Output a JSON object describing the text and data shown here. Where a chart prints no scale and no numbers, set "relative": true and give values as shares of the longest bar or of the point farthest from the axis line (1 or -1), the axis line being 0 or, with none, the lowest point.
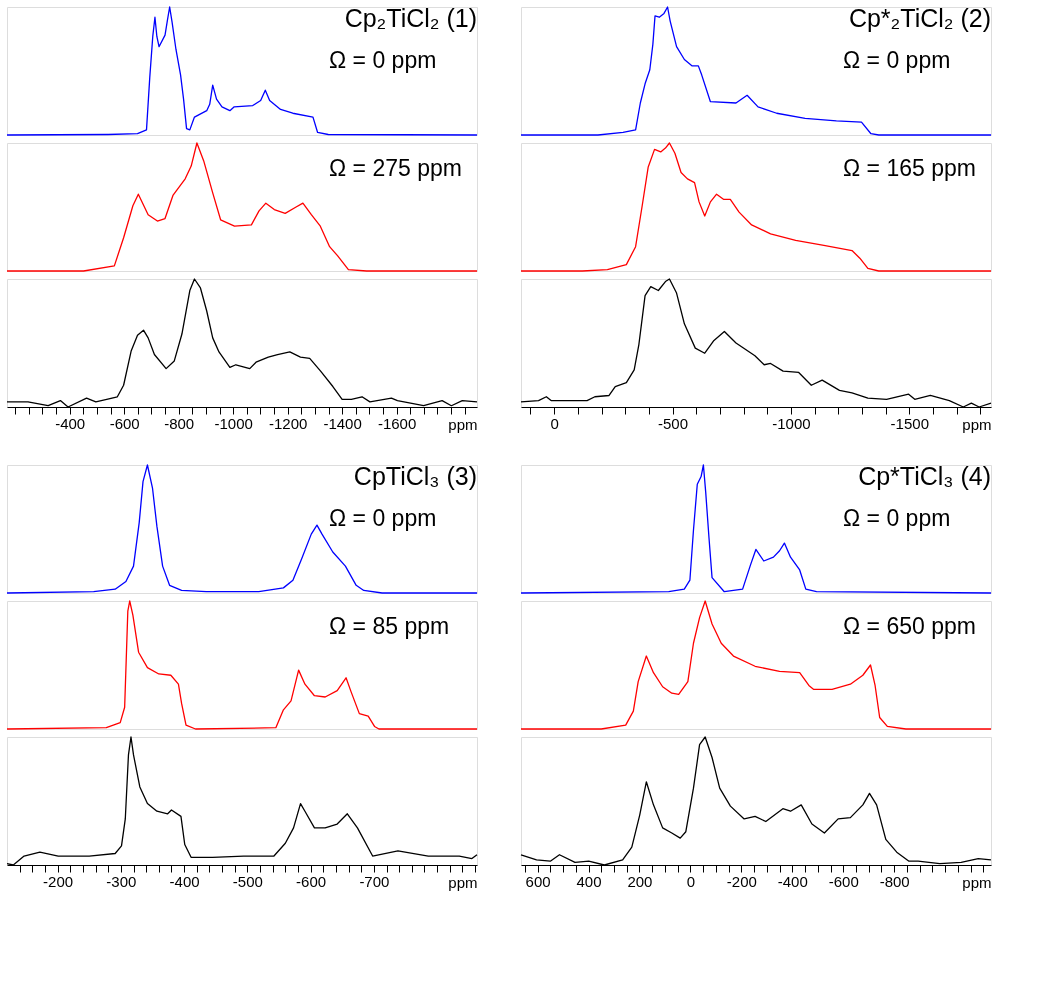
{
  "chart_data": [
    {
      "type": "line",
      "relative": true,
      "title": "Cp₂TiCl₂ (1)",
      "annotations": [
        "Ω = 0 ppm"
      ],
      "color": "#0000ff",
      "xlim": [
        -170,
        -1895
      ],
      "tick_labels": false,
      "x": [
        -170,
        -541,
        -649,
        -682,
        -694,
        -705,
        -713,
        -720,
        -728,
        -750,
        -759,
        -767,
        -776,
        -790,
        -807,
        -818,
        -829,
        -841,
        -858,
        -903,
        -914,
        -925,
        -939,
        -959,
        -988,
        -1004,
        -1072,
        -1101,
        -1118,
        -1134,
        -1174,
        -1219,
        -1293,
        -1310,
        -1349,
        -1895
      ],
      "values": [
        0,
        0.004,
        0.01,
        0.04,
        0.45,
        0.77,
        0.92,
        0.77,
        0.69,
        0.78,
        0.9,
        1.0,
        0.88,
        0.67,
        0.47,
        0.28,
        0.05,
        0.04,
        0.14,
        0.19,
        0.24,
        0.39,
        0.28,
        0.22,
        0.19,
        0.22,
        0.23,
        0.27,
        0.35,
        0.27,
        0.2,
        0.17,
        0.14,
        0.02,
        0.004,
        0
      ]
    },
    {
      "type": "line",
      "relative": true,
      "annotations": [
        "Ω = 275 ppm"
      ],
      "color": "#ff0000",
      "xlim": [
        -170,
        -1895
      ],
      "tick_labels": false,
      "x": [
        -170,
        -451,
        -564,
        -598,
        -632,
        -652,
        -688,
        -722,
        -750,
        -779,
        -824,
        -846,
        -867,
        -892,
        -925,
        -954,
        -1005,
        -1067,
        -1095,
        -1120,
        -1151,
        -1191,
        -1231,
        -1256,
        -1287,
        -1320,
        -1354,
        -1383,
        -1423,
        -1490,
        -1895
      ],
      "values": [
        0,
        0,
        0.04,
        0.26,
        0.51,
        0.6,
        0.44,
        0.39,
        0.41,
        0.59,
        0.72,
        0.82,
        1.0,
        0.86,
        0.61,
        0.4,
        0.35,
        0.36,
        0.47,
        0.53,
        0.48,
        0.45,
        0.5,
        0.53,
        0.44,
        0.35,
        0.19,
        0.12,
        0.01,
        0,
        0
      ]
    },
    {
      "type": "line",
      "relative": true,
      "color": "#000000",
      "xlim": [
        -170,
        -1895
      ],
      "xlabel": "ppm",
      "xticks": [
        {
          "value": -200,
          "label": null
        },
        {
          "value": -250,
          "label": null
        },
        {
          "value": -300,
          "label": null
        },
        {
          "value": -350,
          "label": null
        },
        -400,
        {
          "value": -450,
          "label": null
        },
        {
          "value": -500,
          "label": null
        },
        {
          "value": -550,
          "label": null
        },
        -600,
        {
          "value": -650,
          "label": null
        },
        {
          "value": -700,
          "label": null
        },
        {
          "value": -750,
          "label": null
        },
        -800,
        {
          "value": -850,
          "label": null
        },
        {
          "value": -900,
          "label": null
        },
        {
          "value": -950,
          "label": null
        },
        -1000,
        {
          "value": -1050,
          "label": null
        },
        {
          "value": -1100,
          "label": null
        },
        {
          "value": -1150,
          "label": null
        },
        -1200,
        {
          "value": -1250,
          "label": null
        },
        {
          "value": -1300,
          "label": null
        },
        {
          "value": -1350,
          "label": null
        },
        -1400,
        {
          "value": -1450,
          "label": null
        },
        {
          "value": -1500,
          "label": null
        },
        {
          "value": -1550,
          "label": null
        },
        -1600,
        {
          "value": -1650,
          "label": null
        },
        {
          "value": -1700,
          "label": null
        },
        {
          "value": -1750,
          "label": null
        },
        {
          "value": -1800,
          "label": null
        },
        {
          "value": -1850,
          "label": null
        }
      ],
      "x": [
        -170,
        -247,
        -321,
        -366,
        -394,
        -462,
        -496,
        -536,
        -575,
        -598,
        -626,
        -649,
        -671,
        -688,
        -711,
        -754,
        -784,
        -812,
        -841,
        -858,
        -880,
        -903,
        -925,
        -948,
        -988,
        -1010,
        -1061,
        -1084,
        -1129,
        -1163,
        -1208,
        -1247,
        -1281,
        -1321,
        -1366,
        -1400,
        -1434,
        -1473,
        -1502,
        -1581,
        -1603,
        -1699,
        -1767,
        -1801,
        -1841,
        -1895
      ],
      "values": [
        0.04,
        0.04,
        0.01,
        0.05,
        0,
        0.07,
        0.04,
        0.06,
        0.08,
        0.17,
        0.44,
        0.56,
        0.6,
        0.54,
        0.41,
        0.3,
        0.36,
        0.57,
        0.91,
        1.0,
        0.93,
        0.75,
        0.54,
        0.43,
        0.31,
        0.33,
        0.3,
        0.35,
        0.39,
        0.41,
        0.43,
        0.39,
        0.38,
        0.28,
        0.16,
        0.06,
        0.06,
        0.08,
        0.04,
        0.07,
        0.05,
        0.01,
        0.05,
        0.01,
        0.05,
        0.04
      ]
    },
    {
      "type": "line",
      "relative": true,
      "title": "Cp*₂TiCl₂ (2)",
      "annotations": [
        "Ω = 0 ppm"
      ],
      "color": "#0000ff",
      "xlim": [
        140,
        -1845
      ],
      "tick_labels": false,
      "x": [
        140,
        -185,
        -291,
        -344,
        -364,
        -384,
        -404,
        -417,
        -426,
        -444,
        -464,
        -479,
        -490,
        -517,
        -550,
        -583,
        -609,
        -623,
        -660,
        -768,
        -815,
        -861,
        -940,
        -1060,
        -1192,
        -1298,
        -1338,
        -1371,
        -1845
      ],
      "values": [
        0,
        0,
        0.02,
        0.04,
        0.25,
        0.4,
        0.51,
        0.71,
        0.93,
        0.92,
        0.95,
        1.0,
        0.89,
        0.69,
        0.59,
        0.54,
        0.54,
        0.47,
        0.26,
        0.25,
        0.31,
        0.22,
        0.17,
        0.13,
        0.11,
        0.1,
        0.01,
        0,
        0
      ]
    },
    {
      "type": "line",
      "relative": true,
      "annotations": [
        "Ω = 165 ppm"
      ],
      "color": "#ff0000",
      "xlim": [
        140,
        -1845
      ],
      "tick_labels": false,
      "x": [
        140,
        -119,
        -225,
        -305,
        -344,
        -371,
        -397,
        -424,
        -450,
        -470,
        -487,
        -510,
        -536,
        -563,
        -593,
        -612,
        -636,
        -660,
        -686,
        -715,
        -744,
        -781,
        -834,
        -914,
        -1020,
        -1139,
        -1258,
        -1291,
        -1325,
        -1371,
        -1845
      ],
      "values": [
        0,
        0,
        0.01,
        0.05,
        0.19,
        0.5,
        0.81,
        0.95,
        0.93,
        0.96,
        1.0,
        0.92,
        0.77,
        0.72,
        0.69,
        0.54,
        0.43,
        0.54,
        0.6,
        0.56,
        0.56,
        0.46,
        0.36,
        0.29,
        0.24,
        0.2,
        0.16,
        0.1,
        0.02,
        0,
        0
      ]
    },
    {
      "type": "line",
      "relative": true,
      "color": "#000000",
      "xlim": [
        140,
        -1845
      ],
      "xlabel": "ppm",
      "xticks": [
        {
          "value": 100,
          "label": null
        },
        0,
        {
          "value": -100,
          "label": null
        },
        {
          "value": -200,
          "label": null
        },
        {
          "value": -300,
          "label": null
        },
        {
          "value": -400,
          "label": null
        },
        -500,
        {
          "value": -600,
          "label": null
        },
        {
          "value": -700,
          "label": null
        },
        {
          "value": -800,
          "label": null
        },
        {
          "value": -900,
          "label": null
        },
        -1000,
        {
          "value": -1100,
          "label": null
        },
        {
          "value": -1200,
          "label": null
        },
        {
          "value": -1300,
          "label": null
        },
        {
          "value": -1400,
          "label": null
        },
        -1500,
        {
          "value": -1600,
          "label": null
        },
        {
          "value": -1700,
          "label": null
        },
        {
          "value": -1800,
          "label": null
        }
      ],
      "x": [
        140,
        66,
        33,
        13,
        -66,
        -139,
        -172,
        -232,
        -258,
        -305,
        -338,
        -358,
        -384,
        -408,
        -440,
        -470,
        -487,
        -517,
        -550,
        -596,
        -636,
        -675,
        -719,
        -768,
        -848,
        -887,
        -914,
        -967,
        -1033,
        -1086,
        -1132,
        -1205,
        -1258,
        -1325,
        -1404,
        -1497,
        -1523,
        -1589,
        -1669,
        -1728,
        -1762,
        -1795,
        -1845
      ],
      "values": [
        0.04,
        0.05,
        0.08,
        0.05,
        0.05,
        0.05,
        0.08,
        0.09,
        0.16,
        0.19,
        0.29,
        0.49,
        0.87,
        0.94,
        0.91,
        0.98,
        1.0,
        0.89,
        0.65,
        0.46,
        0.42,
        0.52,
        0.59,
        0.5,
        0.4,
        0.33,
        0.34,
        0.28,
        0.27,
        0.17,
        0.21,
        0.13,
        0.11,
        0.07,
        0.06,
        0.1,
        0.06,
        0.09,
        0.05,
        0,
        0.03,
        0,
        0.03
      ]
    },
    {
      "type": "line",
      "relative": true,
      "title": "CpTiCl₃ (3)",
      "annotations": [
        "Ω = 0 ppm"
      ],
      "color": "#0000ff",
      "xlim": [
        -120,
        -863
      ],
      "tick_labels": false,
      "x": [
        -120,
        -257,
        -291,
        -308,
        -320,
        -329,
        -335,
        -342,
        -350,
        -357,
        -366,
        -377,
        -396,
        -435,
        -518,
        -557,
        -572,
        -586,
        -601,
        -610,
        -618,
        -635,
        -655,
        -672,
        -684,
        -713,
        -863
      ],
      "values": [
        0,
        0.01,
        0.03,
        0.09,
        0.21,
        0.55,
        0.87,
        1.0,
        0.82,
        0.52,
        0.21,
        0.06,
        0.02,
        0.01,
        0.01,
        0.04,
        0.1,
        0.27,
        0.46,
        0.53,
        0.46,
        0.32,
        0.21,
        0.06,
        0.02,
        0,
        0
      ]
    },
    {
      "type": "line",
      "relative": true,
      "annotations": [
        "Ω = 85 ppm"
      ],
      "color": "#ff0000",
      "xlim": [
        -120,
        -863
      ],
      "tick_labels": false,
      "x": [
        -120,
        -277,
        -299,
        -306,
        -311,
        -314,
        -319,
        -328,
        -342,
        -360,
        -379,
        -391,
        -396,
        -403,
        -418,
        -545,
        -557,
        -569,
        -581,
        -591,
        -606,
        -623,
        -642,
        -656,
        -664,
        -677,
        -691,
        -701,
        -708,
        -863
      ],
      "values": [
        0,
        0.01,
        0.05,
        0.17,
        0.92,
        1.0,
        0.89,
        0.6,
        0.48,
        0.43,
        0.42,
        0.35,
        0.2,
        0.03,
        0,
        0.01,
        0.15,
        0.22,
        0.46,
        0.35,
        0.26,
        0.25,
        0.3,
        0.4,
        0.29,
        0.12,
        0.1,
        0.02,
        0,
        0
      ]
    },
    {
      "type": "line",
      "relative": true,
      "color": "#000000",
      "xlim": [
        -120,
        -863
      ],
      "xlabel": "ppm",
      "xticks": [
        {
          "value": -140,
          "label": null
        },
        {
          "value": -160,
          "label": null
        },
        {
          "value": -180,
          "label": null
        },
        -200,
        {
          "value": -220,
          "label": null
        },
        {
          "value": -240,
          "label": null
        },
        {
          "value": -260,
          "label": null
        },
        {
          "value": -280,
          "label": null
        },
        -300,
        {
          "value": -320,
          "label": null
        },
        {
          "value": -340,
          "label": null
        },
        {
          "value": -360,
          "label": null
        },
        {
          "value": -380,
          "label": null
        },
        -400,
        {
          "value": -420,
          "label": null
        },
        {
          "value": -440,
          "label": null
        },
        {
          "value": -460,
          "label": null
        },
        {
          "value": -480,
          "label": null
        },
        -500,
        {
          "value": -520,
          "label": null
        },
        {
          "value": -540,
          "label": null
        },
        {
          "value": -560,
          "label": null
        },
        {
          "value": -580,
          "label": null
        },
        -600,
        {
          "value": -620,
          "label": null
        },
        {
          "value": -640,
          "label": null
        },
        {
          "value": -660,
          "label": null
        },
        {
          "value": -680,
          "label": null
        },
        -700,
        {
          "value": -720,
          "label": null
        },
        {
          "value": -740,
          "label": null
        },
        {
          "value": -760,
          "label": null
        },
        {
          "value": -780,
          "label": null
        },
        {
          "value": -800,
          "label": null
        },
        {
          "value": -820,
          "label": null
        },
        {
          "value": -840,
          "label": null
        },
        {
          "value": -860,
          "label": null
        }
      ],
      "x": [
        -120,
        -130,
        -147,
        -172,
        -201,
        -250,
        -291,
        -301,
        -307,
        -312,
        -316,
        -320,
        -330,
        -342,
        -357,
        -374,
        -380,
        -395,
        -401,
        -411,
        -445,
        -494,
        -542,
        -560,
        -573,
        -584,
        -591,
        -606,
        -623,
        -642,
        -658,
        -674,
        -698,
        -738,
        -786,
        -835,
        -855,
        -863
      ],
      "values": [
        0.01,
        0,
        0.07,
        0.1,
        0.07,
        0.07,
        0.09,
        0.15,
        0.36,
        0.86,
        1.0,
        0.86,
        0.61,
        0.48,
        0.42,
        0.4,
        0.43,
        0.38,
        0.16,
        0.06,
        0.06,
        0.07,
        0.07,
        0.17,
        0.29,
        0.48,
        0.42,
        0.29,
        0.29,
        0.32,
        0.4,
        0.29,
        0.07,
        0.11,
        0.07,
        0.07,
        0.05,
        0.08
      ]
    },
    {
      "type": "line",
      "relative": true,
      "title": "Cp*TiCl₃ (4)",
      "annotations": [
        "Ω = 0 ppm"
      ],
      "color": "#0000ff",
      "xlim": [
        665,
        -1180
      ],
      "tick_labels": false,
      "x": [
        665,
        85,
        24,
        2,
        -12,
        -27,
        -42,
        -51,
        -60,
        -73,
        -85,
        -133,
        -205,
        -236,
        -257,
        -288,
        -326,
        -350,
        -369,
        -393,
        -429,
        -453,
        -495,
        -1180
      ],
      "values": [
        0,
        0.01,
        0.03,
        0.1,
        0.49,
        0.85,
        0.91,
        1.0,
        0.79,
        0.43,
        0.12,
        0.01,
        0.03,
        0.22,
        0.34,
        0.25,
        0.28,
        0.33,
        0.39,
        0.28,
        0.18,
        0.03,
        0.01,
        0
      ]
    },
    {
      "type": "line",
      "relative": true,
      "annotations": [
        "Ω = 650 ppm"
      ],
      "color": "#ff0000",
      "xlim": [
        665,
        -1180
      ],
      "tick_labels": false,
      "x": [
        665,
        350,
        254,
        224,
        205,
        173,
        145,
        109,
        73,
        46,
        10,
        -12,
        -36,
        -58,
        -85,
        -121,
        -169,
        -254,
        -350,
        -429,
        -465,
        -483,
        -556,
        -628,
        -677,
        -707,
        -725,
        -743,
        -773,
        -846,
        -1180
      ],
      "values": [
        0,
        0,
        0.03,
        0.14,
        0.37,
        0.57,
        0.44,
        0.33,
        0.28,
        0.27,
        0.37,
        0.67,
        0.87,
        1.0,
        0.82,
        0.67,
        0.57,
        0.49,
        0.45,
        0.44,
        0.34,
        0.31,
        0.31,
        0.35,
        0.42,
        0.5,
        0.34,
        0.09,
        0.02,
        0,
        0
      ]
    },
    {
      "type": "line",
      "relative": true,
      "color": "#000000",
      "xlim": [
        665,
        -1180
      ],
      "xlabel": "ppm",
      "xticks": [
        {
          "value": 650,
          "label": null
        },
        600,
        {
          "value": 550,
          "label": null
        },
        {
          "value": 500,
          "label": null
        },
        {
          "value": 450,
          "label": null
        },
        400,
        {
          "value": 350,
          "label": null
        },
        {
          "value": 300,
          "label": null
        },
        {
          "value": 250,
          "label": null
        },
        200,
        {
          "value": 150,
          "label": null
        },
        {
          "value": 100,
          "label": null
        },
        {
          "value": 50,
          "label": null
        },
        0,
        {
          "value": -50,
          "label": null
        },
        {
          "value": -100,
          "label": null
        },
        {
          "value": -150,
          "label": null
        },
        -200,
        {
          "value": -250,
          "label": null
        },
        {
          "value": -300,
          "label": null
        },
        {
          "value": -350,
          "label": null
        },
        -400,
        {
          "value": -450,
          "label": null
        },
        {
          "value": -500,
          "label": null
        },
        {
          "value": -550,
          "label": null
        },
        -600,
        {
          "value": -650,
          "label": null
        },
        {
          "value": -700,
          "label": null
        },
        {
          "value": -750,
          "label": null
        },
        -800,
        {
          "value": -850,
          "label": null
        },
        {
          "value": -900,
          "label": null
        },
        {
          "value": -950,
          "label": null
        },
        {
          "value": -1000,
          "label": null
        },
        {
          "value": -1050,
          "label": null
        },
        {
          "value": -1100,
          "label": null
        },
        {
          "value": -1150,
          "label": null
        }
      ],
      "x": [
        665,
        604,
        550,
        514,
        453,
        399,
        338,
        266,
        230,
        199,
        173,
        145,
        109,
        73,
        40,
        18,
        -12,
        -36,
        -58,
        -85,
        -115,
        -157,
        -211,
        -254,
        -296,
        -363,
        -393,
        -435,
        -477,
        -526,
        -580,
        -628,
        -677,
        -703,
        -731,
        -767,
        -810,
        -858,
        -894,
        -979,
        -1063,
        -1130,
        -1180
      ],
      "values": [
        0.08,
        0.04,
        0.03,
        0.08,
        0.02,
        0.03,
        0,
        0.04,
        0.14,
        0.39,
        0.65,
        0.47,
        0.29,
        0.25,
        0.21,
        0.26,
        0.6,
        0.94,
        1.0,
        0.84,
        0.6,
        0.46,
        0.36,
        0.38,
        0.34,
        0.44,
        0.42,
        0.47,
        0.32,
        0.25,
        0.36,
        0.37,
        0.47,
        0.56,
        0.47,
        0.2,
        0.1,
        0.03,
        0.03,
        0.01,
        0.02,
        0.05,
        0.04
      ]
    }
  ]
}
